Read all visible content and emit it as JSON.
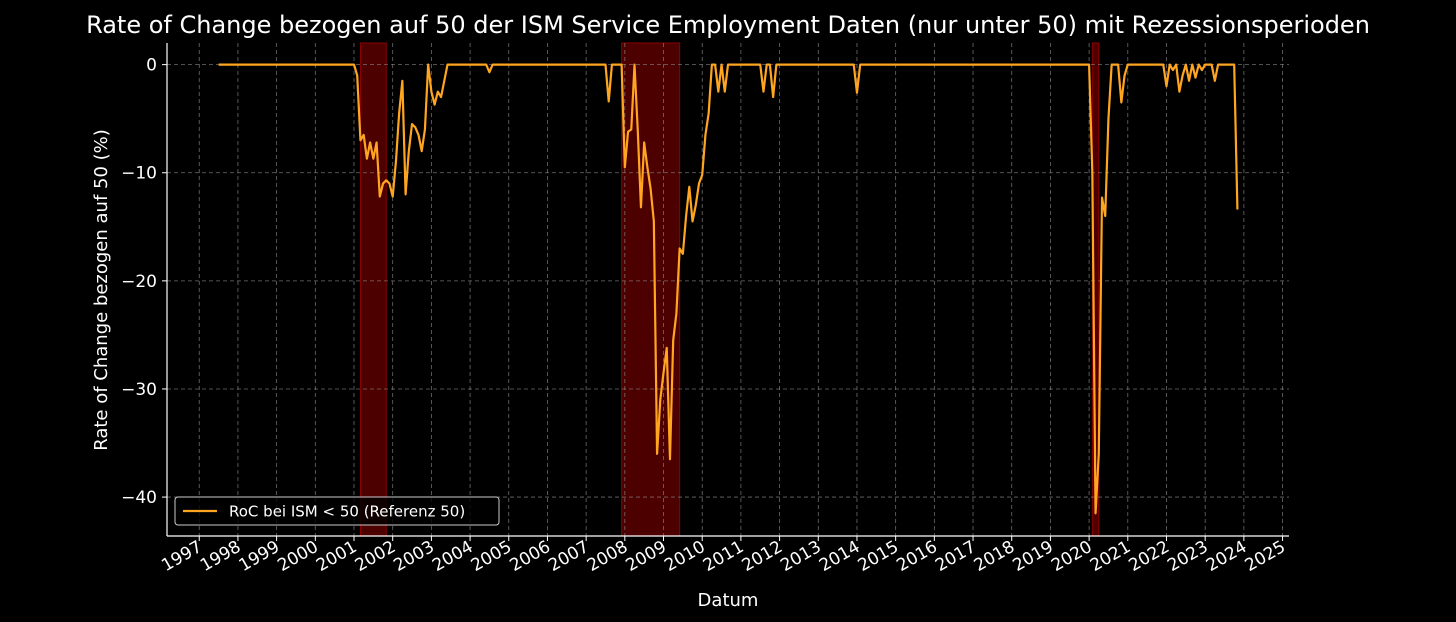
{
  "chart_data": {
    "type": "line",
    "title": "Rate of Change bezogen auf 50 der ISM Service Employment Daten (nur unter 50) mit Rezessionsperioden",
    "xlabel": "Datum",
    "ylabel": "Rate of Change bezogen auf 50 (%)",
    "x": [
      "1997-07",
      "2001-01",
      "2001-02",
      "2001-03",
      "2001-04",
      "2001-05",
      "2001-06",
      "2001-07",
      "2001-08",
      "2001-09",
      "2001-10",
      "2001-11",
      "2001-12",
      "2002-01",
      "2002-02",
      "2002-03",
      "2002-04",
      "2002-05",
      "2002-06",
      "2002-07",
      "2002-08",
      "2002-09",
      "2002-10",
      "2002-11",
      "2002-12",
      "2003-01",
      "2003-02",
      "2003-03",
      "2003-04",
      "2003-05",
      "2003-06",
      "2004-06",
      "2004-07",
      "2004-08",
      "2007-07",
      "2007-08",
      "2007-09",
      "2007-12",
      "2008-01",
      "2008-02",
      "2008-03",
      "2008-04",
      "2008-05",
      "2008-06",
      "2008-07",
      "2008-08",
      "2008-09",
      "2008-10",
      "2008-11",
      "2008-12",
      "2009-01",
      "2009-02",
      "2009-03",
      "2009-04",
      "2009-05",
      "2009-06",
      "2009-07",
      "2009-08",
      "2009-09",
      "2009-10",
      "2009-11",
      "2009-12",
      "2010-01",
      "2010-02",
      "2010-03",
      "2010-04",
      "2010-05",
      "2010-06",
      "2010-07",
      "2010-08",
      "2010-09",
      "2011-07",
      "2011-08",
      "2011-09",
      "2011-10",
      "2011-11",
      "2011-12",
      "2013-12",
      "2014-01",
      "2014-02",
      "2020-01",
      "2020-02",
      "2020-03",
      "2020-04",
      "2020-05",
      "2020-06",
      "2020-07",
      "2020-08",
      "2020-09",
      "2020-10",
      "2020-11",
      "2020-12",
      "2021-01",
      "2021-12",
      "2022-01",
      "2022-02",
      "2022-03",
      "2022-04",
      "2022-05",
      "2022-06",
      "2022-07",
      "2022-08",
      "2022-09",
      "2022-10",
      "2022-11",
      "2022-12",
      "2023-01",
      "2023-03",
      "2023-04",
      "2023-05",
      "2023-10",
      "2023-11"
    ],
    "series": [
      {
        "name": "RoC bei ISM < 50 (Referenz 50)",
        "color": "#ffa51f",
        "values": [
          0,
          0,
          -1,
          -7,
          -6.5,
          -8.7,
          -7.2,
          -8.7,
          -7.2,
          -12.2,
          -11,
          -10.7,
          -11,
          -12.2,
          -9,
          -4.5,
          -1.5,
          -12,
          -8,
          -5.5,
          -5.8,
          -6.5,
          -8,
          -6,
          0,
          -2.5,
          -3.7,
          -2.5,
          -3,
          -1.5,
          0,
          0,
          -0.7,
          0,
          0,
          -3.4,
          0,
          0,
          -9.5,
          -6.2,
          -6,
          0,
          -6,
          -13.2,
          -7.2,
          -9.5,
          -11.5,
          -14.5,
          -36,
          -31,
          -28.5,
          -26.2,
          -36.5,
          -25.5,
          -23,
          -17,
          -17.5,
          -14,
          -11.3,
          -14.5,
          -13,
          -11,
          -10.2,
          -6.5,
          -4.5,
          0,
          0,
          -2.5,
          0,
          -2.5,
          0,
          0,
          -2.5,
          0,
          0,
          -3,
          0,
          0,
          -2.6,
          0,
          0,
          -10,
          -41.5,
          -36,
          -12.3,
          -14,
          -5,
          0,
          0,
          0,
          -3.5,
          -1,
          0,
          0,
          -2,
          0,
          -0.5,
          0,
          -2.5,
          -1,
          0,
          -1.5,
          0,
          -1.2,
          0,
          -0.5,
          0,
          0,
          -1.5,
          0,
          0,
          -13.4
        ]
      }
    ],
    "recessions": [
      {
        "start": "2001-03",
        "end": "2001-11"
      },
      {
        "start": "2007-12",
        "end": "2009-06"
      },
      {
        "start": "2020-02",
        "end": "2020-04"
      }
    ],
    "recession_color": "#8b0000",
    "xlim": [
      "1996-03",
      "2025-03"
    ],
    "xticks": [
      "1997",
      "1998",
      "1999",
      "2000",
      "2001",
      "2002",
      "2003",
      "2004",
      "2005",
      "2006",
      "2007",
      "2008",
      "2009",
      "2010",
      "2011",
      "2012",
      "2013",
      "2014",
      "2015",
      "2016",
      "2017",
      "2018",
      "2019",
      "2020",
      "2021",
      "2022",
      "2023",
      "2024",
      "2025"
    ],
    "ylim": [
      -43.6,
      2.0
    ],
    "yticks": [
      {
        "value": -40,
        "label": "−40"
      },
      {
        "value": -30,
        "label": "−30"
      },
      {
        "value": -20,
        "label": "−20"
      },
      {
        "value": -10,
        "label": "−10"
      },
      0
    ],
    "grid": true,
    "legend": "lower left"
  }
}
